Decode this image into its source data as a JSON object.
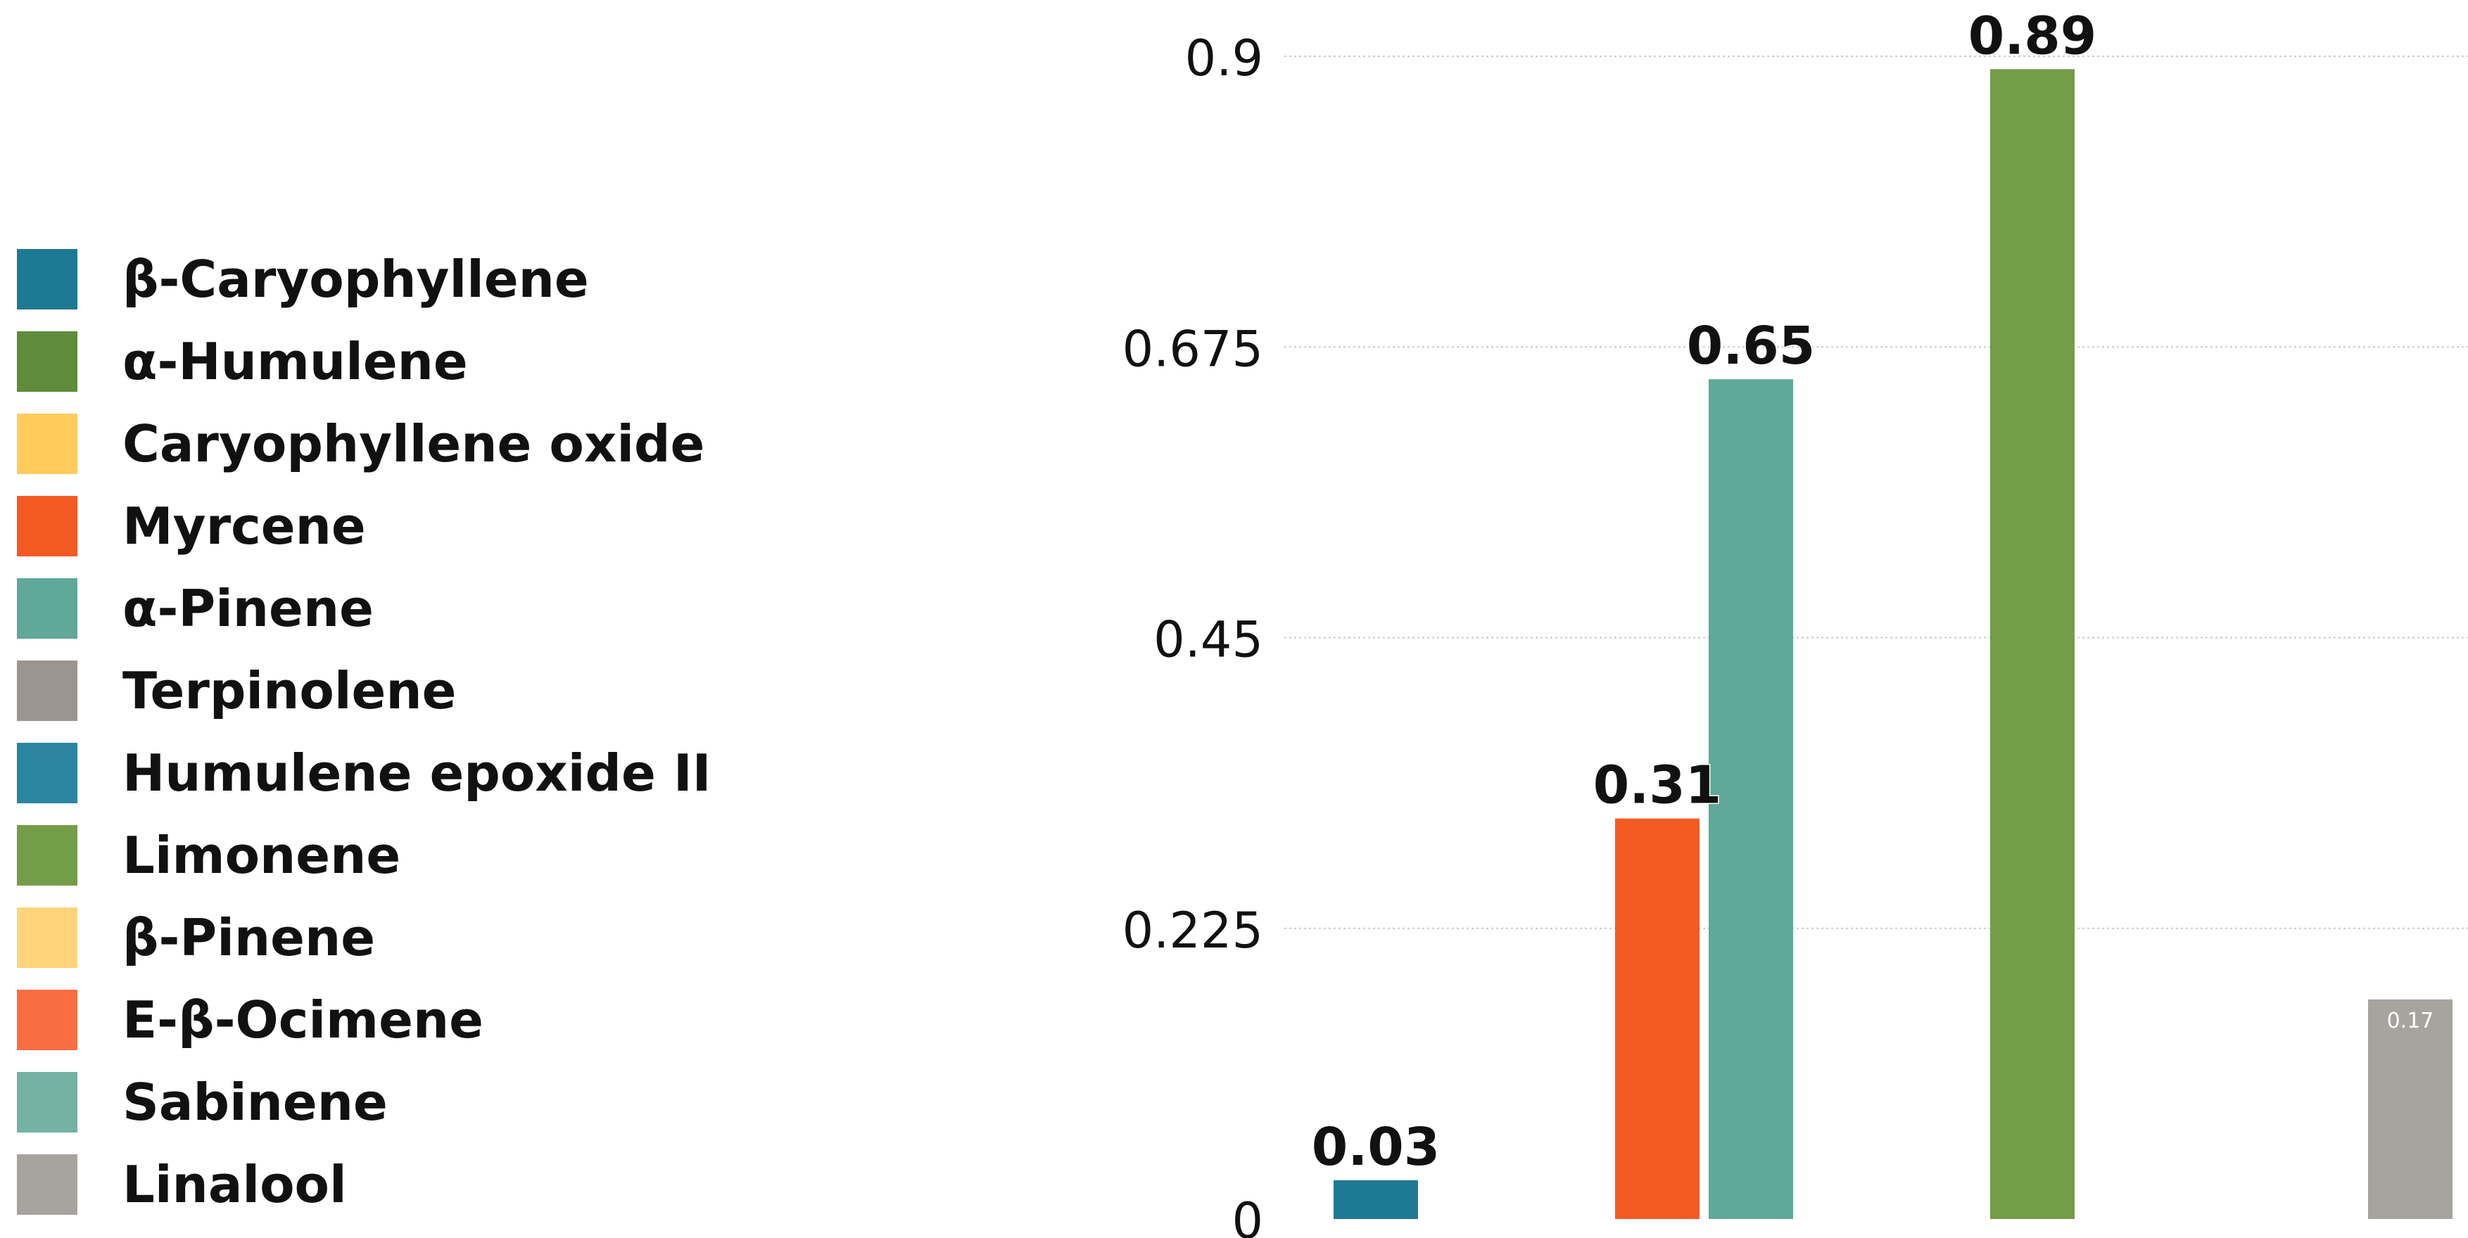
{
  "chart_data": {
    "type": "bar",
    "title": "",
    "xlabel": "",
    "ylabel": "",
    "ylim": [
      0,
      0.9
    ],
    "yticks": [
      "0",
      "0.225",
      "0.45",
      "0.675",
      "0.9"
    ],
    "ytick_values": [
      0,
      0.225,
      0.45,
      0.675,
      0.9
    ],
    "grid": true,
    "legend_position": "left",
    "legend": [
      {
        "label": "β-Caryophyllene",
        "color": "#1E7A94"
      },
      {
        "label": "α-Humulene",
        "color": "#5E8C3A"
      },
      {
        "label": "Caryophyllene oxide",
        "color": "#FFCC5C"
      },
      {
        "label": "Myrcene",
        "color": "#F45A24"
      },
      {
        "label": "α-Pinene",
        "color": "#5FA89A"
      },
      {
        "label": "Terpinolene",
        "color": "#9A9590"
      },
      {
        "label": "Humulene epoxide II",
        "color": "#2C85A2"
      },
      {
        "label": "Limonene",
        "color": "#739D48"
      },
      {
        "label": "β-Pinene",
        "color": "#FFD47A"
      },
      {
        "label": "E-β-Ocimene",
        "color": "#F86E42"
      },
      {
        "label": "Sabinene",
        "color": "#74B2A6"
      },
      {
        "label": "Linalool",
        "color": "#A7A39F"
      }
    ],
    "bars": [
      {
        "name": "β-Caryophyllene",
        "value": 0.03,
        "label": "0.03",
        "color": "#1E7A94"
      },
      {
        "name": "Myrcene",
        "value": 0.31,
        "label": "0.31",
        "color": "#F45A24"
      },
      {
        "name": "α-Pinene",
        "value": 0.65,
        "label": "0.65",
        "color": "#5FA89A"
      },
      {
        "name": "Limonene",
        "value": 0.89,
        "label": "0.89",
        "color": "#739D48"
      },
      {
        "name": "Linalool",
        "value": 0.17,
        "label": "0.17",
        "color": "#A7A39F"
      }
    ]
  }
}
